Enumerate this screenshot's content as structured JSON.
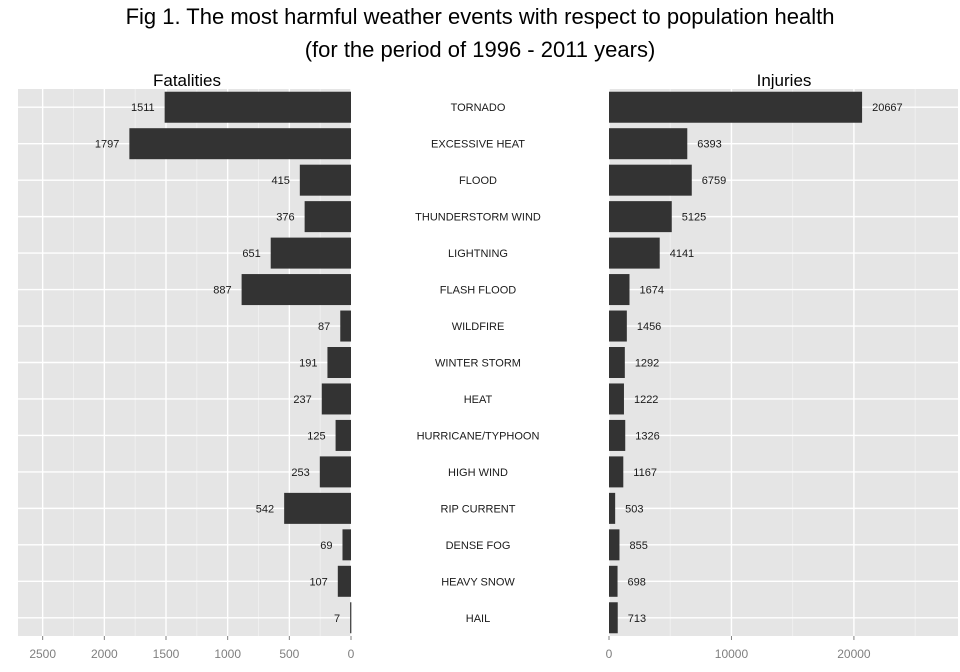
{
  "chart_data": {
    "type": "bar",
    "orientation": "horizontal",
    "title": "Fig 1. The most harmful weather events with respect to population health",
    "subtitle": "(for the period of 1996 - 2011 years)",
    "categories": [
      "TORNADO",
      "EXCESSIVE HEAT",
      "FLOOD",
      "THUNDERSTORM WIND",
      "LIGHTNING",
      "FLASH FLOOD",
      "WILDFIRE",
      "WINTER STORM",
      "HEAT",
      "HURRICANE/TYPHOON",
      "HIGH WIND",
      "RIP CURRENT",
      "DENSE FOG",
      "HEAVY SNOW",
      "HAIL"
    ],
    "panels": [
      {
        "name": "Fatalities",
        "values": [
          1511,
          1797,
          415,
          376,
          651,
          887,
          87,
          191,
          237,
          125,
          253,
          542,
          69,
          107,
          7
        ],
        "xlim": [
          2700,
          0
        ],
        "reversed": true,
        "ticks": [
          2500,
          2000,
          1500,
          1000,
          500,
          0
        ],
        "tick_labels": [
          "2500",
          "2000",
          "1500",
          "1000",
          "500",
          "0"
        ]
      },
      {
        "name": "Injuries",
        "values": [
          20667,
          6393,
          6759,
          5125,
          4141,
          1674,
          1456,
          1292,
          1222,
          1326,
          1167,
          503,
          855,
          698,
          713
        ],
        "xlim": [
          0,
          28500
        ],
        "reversed": false,
        "ticks": [
          0,
          10000,
          20000
        ],
        "tick_labels": [
          "0",
          "10000",
          "20000"
        ]
      }
    ],
    "grid": true,
    "bar_color": "#333333",
    "panel_background": "#e5e5e5",
    "grid_color": "#ffffff"
  }
}
